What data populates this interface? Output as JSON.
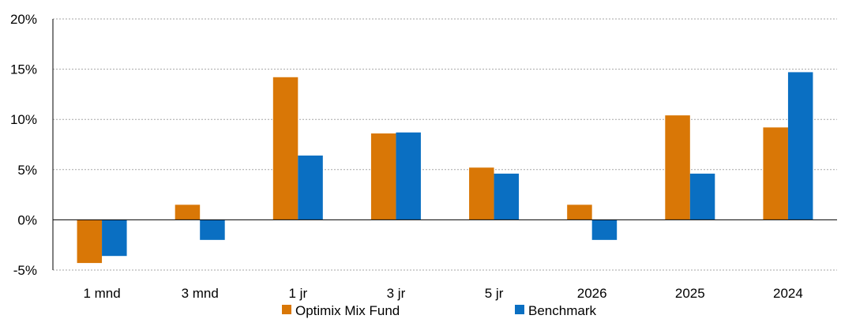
{
  "chart_data": {
    "type": "bar",
    "categories": [
      "1 mnd",
      "3 mnd",
      "1 jr",
      "3 jr",
      "5 jr",
      "2026",
      "2025",
      "2024"
    ],
    "series": [
      {
        "name": "Optimix Mix Fund",
        "color": "#D97706",
        "values": [
          -4.3,
          1.5,
          14.2,
          8.6,
          5.2,
          1.5,
          10.4,
          9.2
        ]
      },
      {
        "name": "Benchmark",
        "color": "#0A6FC2",
        "values": [
          -3.6,
          -2.0,
          6.4,
          8.7,
          4.6,
          -2.0,
          4.6,
          14.7
        ]
      }
    ],
    "ylim": [
      -5,
      20
    ],
    "yticks": [
      -5,
      0,
      5,
      10,
      15,
      20
    ],
    "ytick_labels": [
      "-5%",
      "0%",
      "5%",
      "10%",
      "15%",
      "20%"
    ],
    "grid": true,
    "legend_position": "bottom-center"
  }
}
